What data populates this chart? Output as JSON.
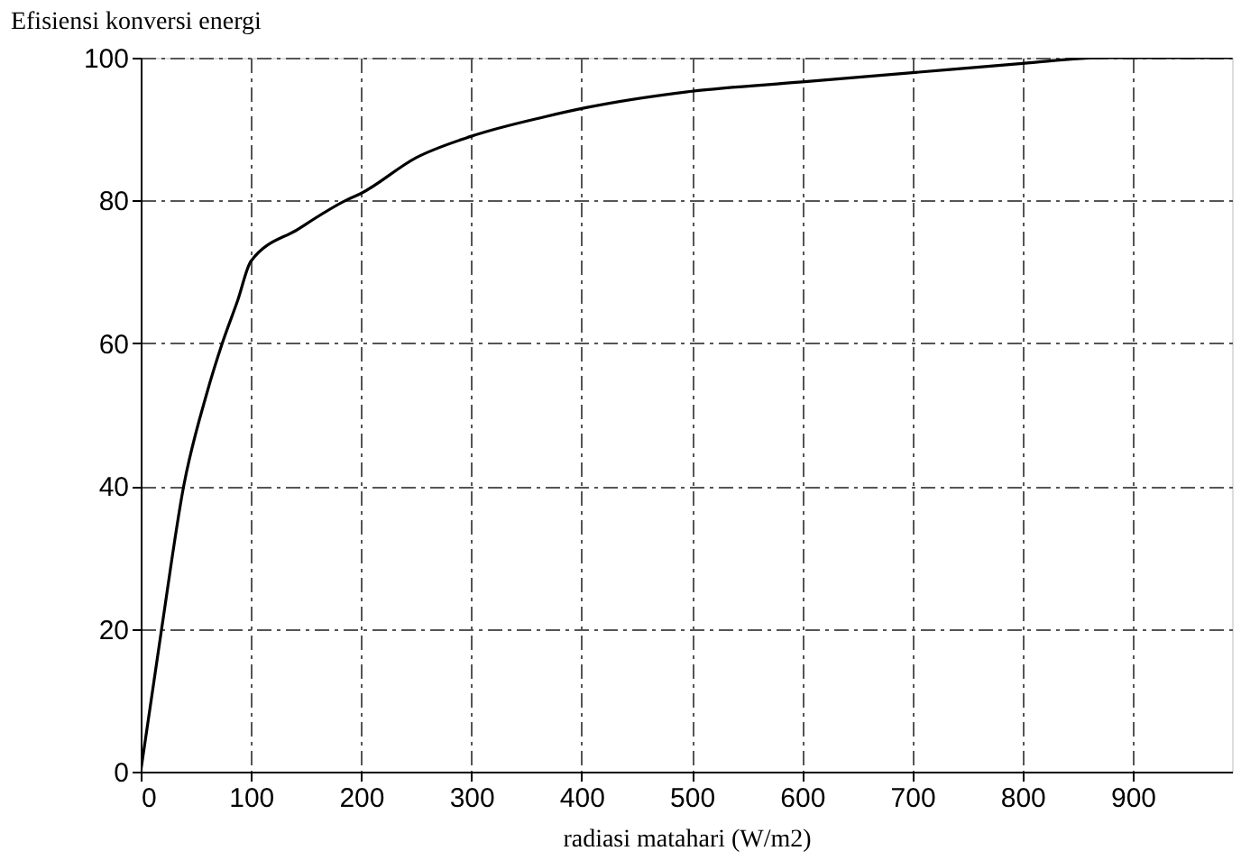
{
  "chart_data": {
    "type": "line",
    "xlabel": "radiasi matahari (W/m2)",
    "ylabel": "Efisiensi konversi energi",
    "x": [
      0,
      19,
      39,
      60,
      74,
      88,
      100,
      143,
      186,
      200,
      250,
      300,
      366,
      404,
      500,
      600,
      700,
      800,
      875,
      990
    ],
    "series": [
      {
        "color": "#000000",
        "values": [
          0,
          20,
          40,
          53,
          60,
          66,
          71.5,
          76,
          80,
          81,
          86,
          89,
          91.7,
          93,
          95.3,
          96.6,
          97.9,
          99.2,
          100,
          100
        ]
      }
    ],
    "xlim": [
      0,
      990
    ],
    "xticks": [
      0,
      100,
      200,
      300,
      400,
      500,
      600,
      700,
      800,
      900
    ],
    "ylim": [
      0,
      100
    ],
    "yticks": [
      0,
      20,
      40,
      60,
      80,
      100
    ],
    "grid": true,
    "marker": "none",
    "line_style": "solid"
  }
}
